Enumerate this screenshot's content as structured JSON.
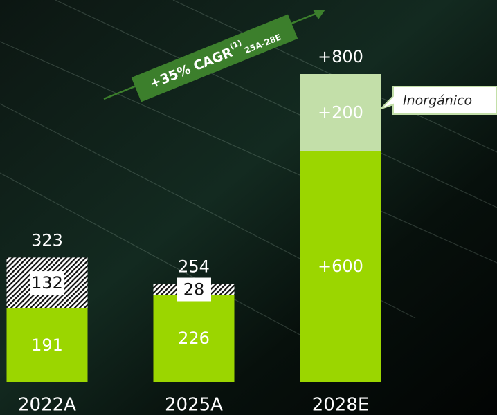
{
  "chart_data": {
    "type": "stacked_bar",
    "categories": [
      "2022A",
      "2025A",
      "2028E"
    ],
    "series": [
      {
        "color": "#9bd600",
        "values": [
          191,
          226,
          600
        ],
        "value_labels": [
          "191",
          "226",
          "+600"
        ]
      },
      {
        "color": "#ffffff",
        "pattern": "hatch",
        "values": [
          132,
          28,
          null
        ],
        "value_labels": [
          "132",
          "28",
          null
        ]
      },
      {
        "color": "#c3dfa9",
        "values": [
          null,
          null,
          200
        ],
        "value_labels": [
          null,
          null,
          "+200"
        ],
        "callout": "Inorgánico"
      }
    ],
    "totals": {
      "values": [
        323,
        254,
        800
      ],
      "value_labels": [
        "323",
        "254",
        "+800"
      ]
    },
    "annotation": {
      "text": "+35% CAGR",
      "superscript": "(1)",
      "subscript": "25A-28E"
    }
  }
}
